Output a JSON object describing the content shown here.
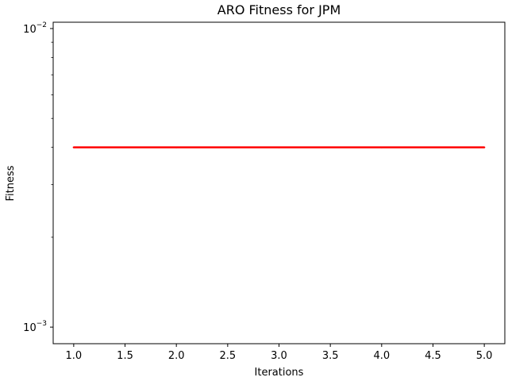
{
  "chart_data": {
    "type": "line",
    "title": "ARO Fitness for JPM",
    "xlabel": "Iterations",
    "ylabel": "Fitness",
    "x_scale": "linear",
    "y_scale": "log",
    "xlim": [
      0.8,
      5.2
    ],
    "ylim": [
      0.00088,
      0.0105
    ],
    "x_ticks": [
      1.0,
      1.5,
      2.0,
      2.5,
      3.0,
      3.5,
      4.0,
      4.5,
      5.0
    ],
    "x_tick_labels": [
      "1.0",
      "1.5",
      "2.0",
      "2.5",
      "3.0",
      "3.5",
      "4.0",
      "4.5",
      "5.0"
    ],
    "y_major_ticks": [
      0.001,
      0.01
    ],
    "y_major_tick_labels": [
      {
        "base": "10",
        "exp": "−3"
      },
      {
        "base": "10",
        "exp": "−2"
      }
    ],
    "y_minor_ticks": [
      0.002,
      0.003,
      0.004,
      0.005,
      0.006,
      0.007,
      0.008,
      0.009
    ],
    "grid": false,
    "legend": "none",
    "series": [
      {
        "x": [
          1,
          2,
          3,
          4,
          5
        ],
        "values": [
          0.004,
          0.004,
          0.004,
          0.004,
          0.004
        ],
        "color": "#ff0000"
      }
    ]
  }
}
